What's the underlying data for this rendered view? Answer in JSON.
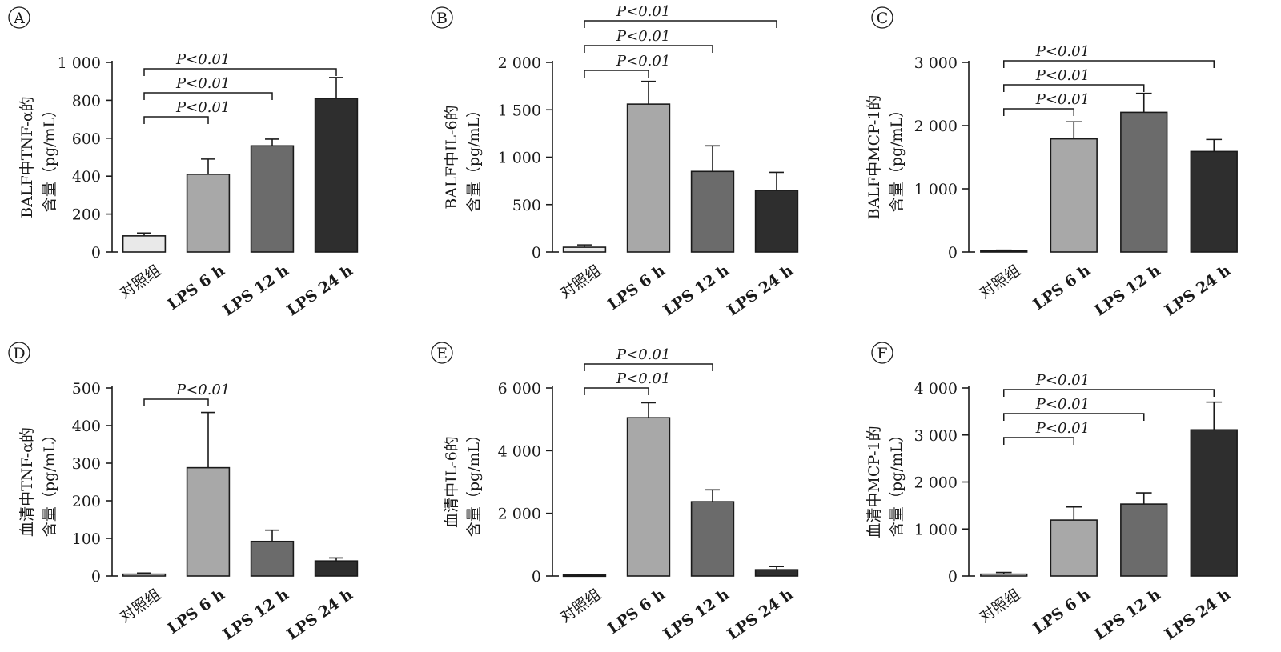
{
  "chart_data": [
    {
      "panel": "A",
      "type": "bar",
      "ylabel_line1": "BALF中TNF-α的",
      "ylabel_line2": "含量（pg/mL）",
      "categories": [
        "对照组",
        "LPS 6 h",
        "LPS 12 h",
        "LPS 24 h"
      ],
      "values": [
        85,
        410,
        560,
        810
      ],
      "errors": [
        15,
        80,
        35,
        110
      ],
      "colors": [
        "#e9e9e9",
        "#a8a8a8",
        "#6b6b6b",
        "#2e2e2e"
      ],
      "ylim": [
        0,
        1000
      ],
      "yticks": [
        0,
        200,
        400,
        600,
        800,
        1000
      ],
      "ytick_labels": [
        "0",
        "200",
        "400",
        "600",
        "800",
        "1 000"
      ],
      "significance": [
        {
          "from": 0,
          "to": 1,
          "text": "P<0.01"
        },
        {
          "from": 0,
          "to": 2,
          "text": "P<0.01"
        },
        {
          "from": 0,
          "to": 3,
          "text": "P<0.01"
        }
      ]
    },
    {
      "panel": "B",
      "type": "bar",
      "ylabel_line1": "BALF中IL-6的",
      "ylabel_line2": "含量（pg/mL）",
      "categories": [
        "对照组",
        "LPS 6 h",
        "LPS 12 h",
        "LPS 24 h"
      ],
      "values": [
        50,
        1560,
        850,
        650
      ],
      "errors": [
        25,
        240,
        270,
        190
      ],
      "colors": [
        "#e9e9e9",
        "#a8a8a8",
        "#6b6b6b",
        "#2e2e2e"
      ],
      "ylim": [
        0,
        2000
      ],
      "yticks": [
        0,
        500,
        1000,
        1500,
        2000
      ],
      "ytick_labels": [
        "0",
        "500",
        "1 000",
        "1 500",
        "2 000"
      ],
      "significance": [
        {
          "from": 0,
          "to": 1,
          "text": "P<0.01"
        },
        {
          "from": 0,
          "to": 2,
          "text": "P<0.01"
        },
        {
          "from": 0,
          "to": 3,
          "text": "P<0.01"
        }
      ]
    },
    {
      "panel": "C",
      "type": "bar",
      "ylabel_line1": "BALF中MCP-1的",
      "ylabel_line2": "含量（pg/mL）",
      "categories": [
        "对照组",
        "LPS 6 h",
        "LPS 12 h",
        "LPS 24 h"
      ],
      "values": [
        20,
        1790,
        2210,
        1590
      ],
      "errors": [
        10,
        270,
        300,
        190
      ],
      "colors": [
        "#e9e9e9",
        "#a8a8a8",
        "#6b6b6b",
        "#2e2e2e"
      ],
      "ylim": [
        0,
        3000
      ],
      "yticks": [
        0,
        1000,
        2000,
        3000
      ],
      "ytick_labels": [
        "0",
        "1 000",
        "2 000",
        "3 000"
      ],
      "significance": [
        {
          "from": 0,
          "to": 1,
          "text": "P<0.01"
        },
        {
          "from": 0,
          "to": 2,
          "text": "P<0.01"
        },
        {
          "from": 0,
          "to": 3,
          "text": "P<0.01"
        }
      ]
    },
    {
      "panel": "D",
      "type": "bar",
      "ylabel_line1": "血清中TNF-α的",
      "ylabel_line2": "含量（pg/mL）",
      "categories": [
        "对照组",
        "LPS 6 h",
        "LPS 12 h",
        "LPS 24 h"
      ],
      "values": [
        5,
        288,
        92,
        40
      ],
      "errors": [
        3,
        147,
        30,
        8
      ],
      "colors": [
        "#e9e9e9",
        "#a8a8a8",
        "#6b6b6b",
        "#2e2e2e"
      ],
      "ylim": [
        0,
        500
      ],
      "yticks": [
        0,
        100,
        200,
        300,
        400,
        500
      ],
      "ytick_labels": [
        "0",
        "100",
        "200",
        "300",
        "400",
        "500"
      ],
      "significance": [
        {
          "from": 0,
          "to": 1,
          "text": "P<0.01"
        }
      ]
    },
    {
      "panel": "E",
      "type": "bar",
      "ylabel_line1": "血清中IL-6的",
      "ylabel_line2": "含量（pg/mL）",
      "categories": [
        "对照组",
        "LPS 6 h",
        "LPS 12 h",
        "LPS 24 h"
      ],
      "values": [
        30,
        5050,
        2370,
        200
      ],
      "errors": [
        20,
        480,
        380,
        100
      ],
      "colors": [
        "#e9e9e9",
        "#a8a8a8",
        "#6b6b6b",
        "#2e2e2e"
      ],
      "ylim": [
        0,
        6000
      ],
      "yticks": [
        0,
        2000,
        4000,
        6000
      ],
      "ytick_labels": [
        "0",
        "2 000",
        "4 000",
        "6 000"
      ],
      "significance": [
        {
          "from": 0,
          "to": 1,
          "text": "P<0.01"
        },
        {
          "from": 0,
          "to": 2,
          "text": "P<0.01"
        }
      ]
    },
    {
      "panel": "F",
      "type": "bar",
      "ylabel_line1": "血清中MCP-1的",
      "ylabel_line2": "含量（pg/mL）",
      "categories": [
        "对照组",
        "LPS 6 h",
        "LPS 12 h",
        "LPS 24 h"
      ],
      "values": [
        40,
        1190,
        1530,
        3110
      ],
      "errors": [
        35,
        280,
        240,
        590
      ],
      "colors": [
        "#e9e9e9",
        "#a8a8a8",
        "#6b6b6b",
        "#2e2e2e"
      ],
      "ylim": [
        0,
        4000
      ],
      "yticks": [
        0,
        1000,
        2000,
        3000,
        4000
      ],
      "ytick_labels": [
        "0",
        "1 000",
        "2 000",
        "3 000",
        "4 000"
      ],
      "significance": [
        {
          "from": 0,
          "to": 1,
          "text": "P<0.01"
        },
        {
          "from": 0,
          "to": 2,
          "text": "P<0.01"
        },
        {
          "from": 0,
          "to": 3,
          "text": "P<0.01"
        }
      ]
    }
  ]
}
